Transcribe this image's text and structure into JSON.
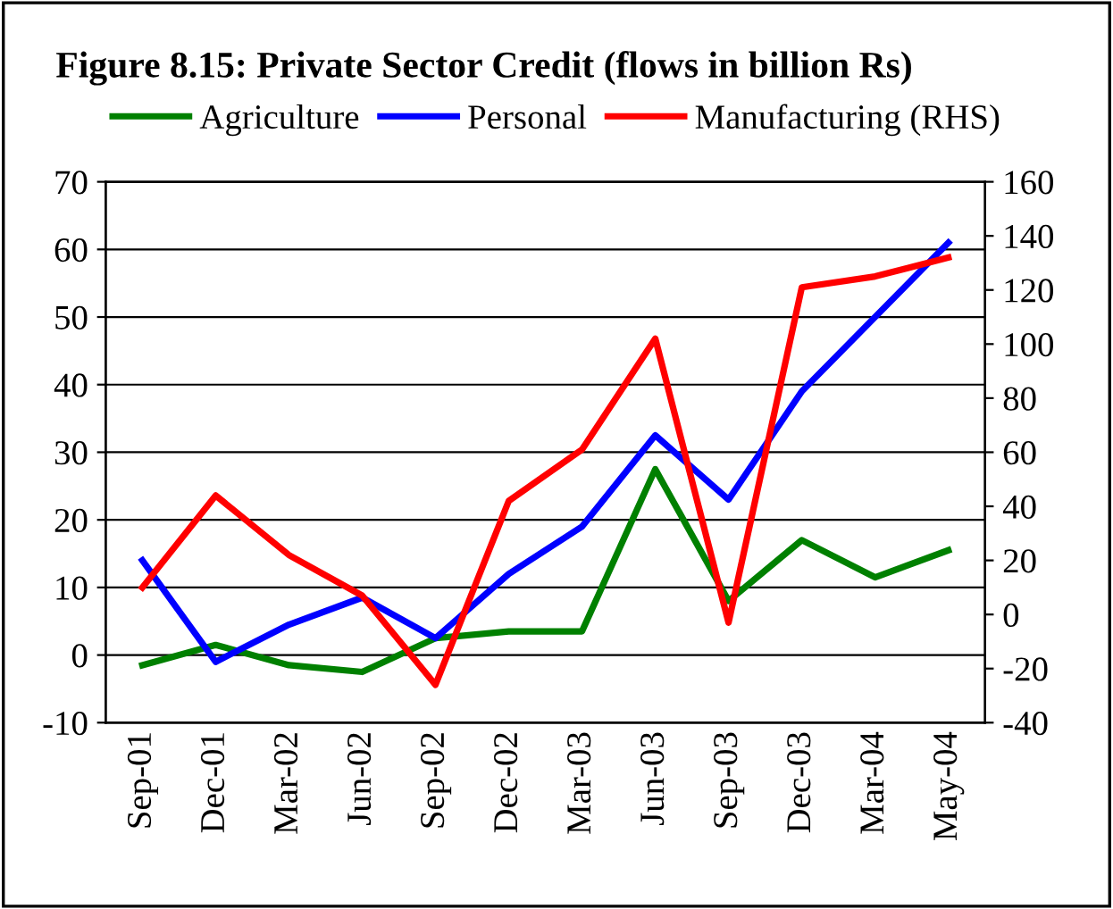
{
  "chart_data": {
    "type": "line",
    "title": "Figure 8.15: Private Sector Credit (flows in billion Rs)",
    "categories": [
      "Sep-01",
      "Dec-01",
      "Mar-02",
      "Jun-02",
      "Sep-02",
      "Dec-02",
      "Mar-03",
      "Jun-03",
      "Sep-03",
      "Dec-03",
      "Mar-04",
      "May-04"
    ],
    "series": [
      {
        "name": "Agriculture",
        "color": "#008000",
        "values": [
          -1.5,
          1.5,
          -1.5,
          -2.5,
          2.5,
          3.5,
          3.5,
          27.5,
          8,
          17,
          11.5,
          15.5
        ]
      },
      {
        "name": "Personal",
        "color": "#0000ff",
        "values": [
          14,
          -1,
          4.5,
          8.5,
          2.5,
          12,
          19,
          32.5,
          23,
          39,
          50,
          61
        ]
      },
      {
        "name": "Manufacturing (RHS)",
        "color": "#ff0000",
        "axis": "y2",
        "values": [
          10,
          44,
          22,
          7,
          -26,
          42,
          61,
          102,
          -3,
          121,
          125,
          132
        ]
      }
    ],
    "ylim": [
      -10,
      70
    ],
    "yticks": [
      -10,
      0,
      10,
      20,
      30,
      40,
      50,
      60,
      70
    ],
    "y2lim": [
      -40,
      160
    ],
    "y2ticks": [
      -40,
      -20,
      0,
      20,
      40,
      60,
      80,
      100,
      120,
      140,
      160
    ],
    "grid": "y",
    "legend": "top",
    "marker": "none",
    "line_style": "solid"
  }
}
